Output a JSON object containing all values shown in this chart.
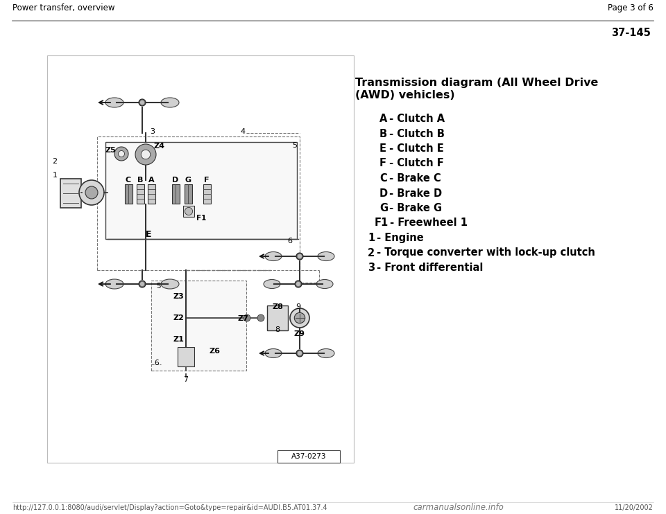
{
  "page_header_left": "Power transfer, overview",
  "page_header_right": "Page 3 of 6",
  "page_number": "37-145",
  "title_line1": "Transmission diagram (All Wheel Drive",
  "title_line2": "(AWD) vehicles)",
  "legend": [
    {
      "key": "A",
      "rest": " - Clutch A",
      "indent": 35
    },
    {
      "key": "B",
      "rest": " - Clutch B",
      "indent": 35
    },
    {
      "key": "E",
      "rest": " - Clutch E",
      "indent": 35
    },
    {
      "key": "F",
      "rest": " - Clutch F",
      "indent": 35
    },
    {
      "key": "C",
      "rest": " - Brake C",
      "indent": 35
    },
    {
      "key": "D",
      "rest": " - Brake D",
      "indent": 35
    },
    {
      "key": "G",
      "rest": " - Brake G",
      "indent": 35
    },
    {
      "key": "F1",
      "rest": " - Freewheel 1",
      "indent": 28
    },
    {
      "key": "1",
      "rest": " - Engine",
      "indent": 18
    },
    {
      "key": "2",
      "rest": " - Torque converter with lock-up clutch",
      "indent": 18
    },
    {
      "key": "3",
      "rest": " - Front differential",
      "indent": 18
    }
  ],
  "footer_url": "http://127.0.0.1:8080/audi/servlet/Display?action=Goto&type=repair&id=AUDI.B5.AT01.37.4",
  "footer_brand": "carmanualsonline.info",
  "footer_date": "11/20/2002",
  "diagram_ref": "A37-0273",
  "bg": "#ffffff",
  "fg": "#000000",
  "gray_light": "#d0d0d0",
  "gray_mid": "#aaaaaa",
  "gray_dark": "#555555",
  "border_color": "#888888"
}
